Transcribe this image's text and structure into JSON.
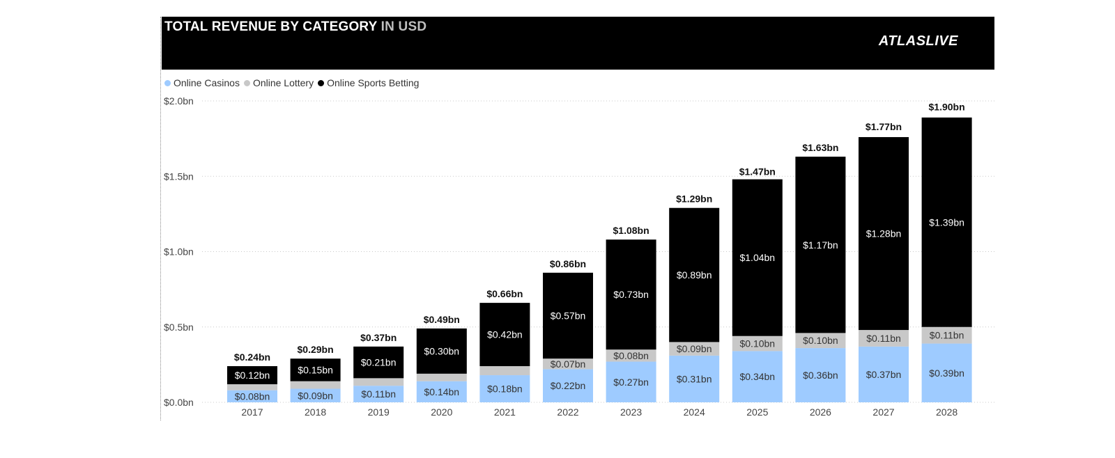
{
  "header": {
    "title_main": "TOTAL REVENUE BY CATEGORY",
    "title_accent": "IN USD",
    "logo": "ATLASLIVE"
  },
  "colors": {
    "online_casinos": "#9ecbff",
    "online_lottery": "#c8c8c8",
    "online_sports_betting": "#000000",
    "header_bg": "#000000"
  },
  "legend": [
    {
      "label": "Online Casinos",
      "color": "#9ecbff"
    },
    {
      "label": "Online Lottery",
      "color": "#c8c8c8"
    },
    {
      "label": "Online Sports Betting",
      "color": "#000000"
    }
  ],
  "chart_data": {
    "type": "bar",
    "stacked": true,
    "title": "TOTAL REVENUE BY CATEGORY IN USD",
    "xlabel": "",
    "ylabel": "",
    "ylim": [
      0,
      2.0
    ],
    "yticks": [
      0,
      0.5,
      1.0,
      1.5,
      2.0
    ],
    "ytick_labels": [
      "$0.0bn",
      "$0.5bn",
      "$1.0bn",
      "$1.5bn",
      "$2.0bn"
    ],
    "grid": true,
    "legend_position": "top-left",
    "categories": [
      "2017",
      "2018",
      "2019",
      "2020",
      "2021",
      "2022",
      "2023",
      "2024",
      "2025",
      "2026",
      "2027",
      "2028"
    ],
    "series": [
      {
        "name": "Online Casinos",
        "color": "#9ecbff",
        "values": [
          0.08,
          0.09,
          0.11,
          0.14,
          0.18,
          0.22,
          0.27,
          0.31,
          0.34,
          0.36,
          0.37,
          0.39
        ],
        "labels": [
          "$0.08bn",
          "$0.09bn",
          "$0.11bn",
          "$0.14bn",
          "$0.18bn",
          "$0.22bn",
          "$0.27bn",
          "$0.31bn",
          "$0.34bn",
          "$0.36bn",
          "$0.37bn",
          "$0.39bn"
        ]
      },
      {
        "name": "Online Lottery",
        "color": "#c8c8c8",
        "values": [
          0.04,
          0.05,
          0.05,
          0.05,
          0.06,
          0.07,
          0.08,
          0.09,
          0.1,
          0.1,
          0.11,
          0.11
        ],
        "labels": [
          "",
          "",
          "",
          "",
          "",
          "$0.07bn",
          "$0.08bn",
          "$0.09bn",
          "$0.10bn",
          "$0.10bn",
          "$0.11bn",
          "$0.11bn"
        ]
      },
      {
        "name": "Online Sports Betting",
        "color": "#000000",
        "values": [
          0.12,
          0.15,
          0.21,
          0.3,
          0.42,
          0.57,
          0.73,
          0.89,
          1.04,
          1.17,
          1.28,
          1.39
        ],
        "labels": [
          "$0.12bn",
          "$0.15bn",
          "$0.21bn",
          "$0.30bn",
          "$0.42bn",
          "$0.57bn",
          "$0.73bn",
          "$0.89bn",
          "$1.04bn",
          "$1.17bn",
          "$1.28bn",
          "$1.39bn"
        ]
      }
    ],
    "totals": [
      0.24,
      0.29,
      0.37,
      0.49,
      0.66,
      0.86,
      1.08,
      1.29,
      1.47,
      1.63,
      1.77,
      1.9
    ],
    "total_labels": [
      "$0.24bn",
      "$0.29bn",
      "$0.37bn",
      "$0.49bn",
      "$0.66bn",
      "$0.86bn",
      "$1.08bn",
      "$1.29bn",
      "$1.47bn",
      "$1.63bn",
      "$1.77bn",
      "$1.90bn"
    ]
  }
}
